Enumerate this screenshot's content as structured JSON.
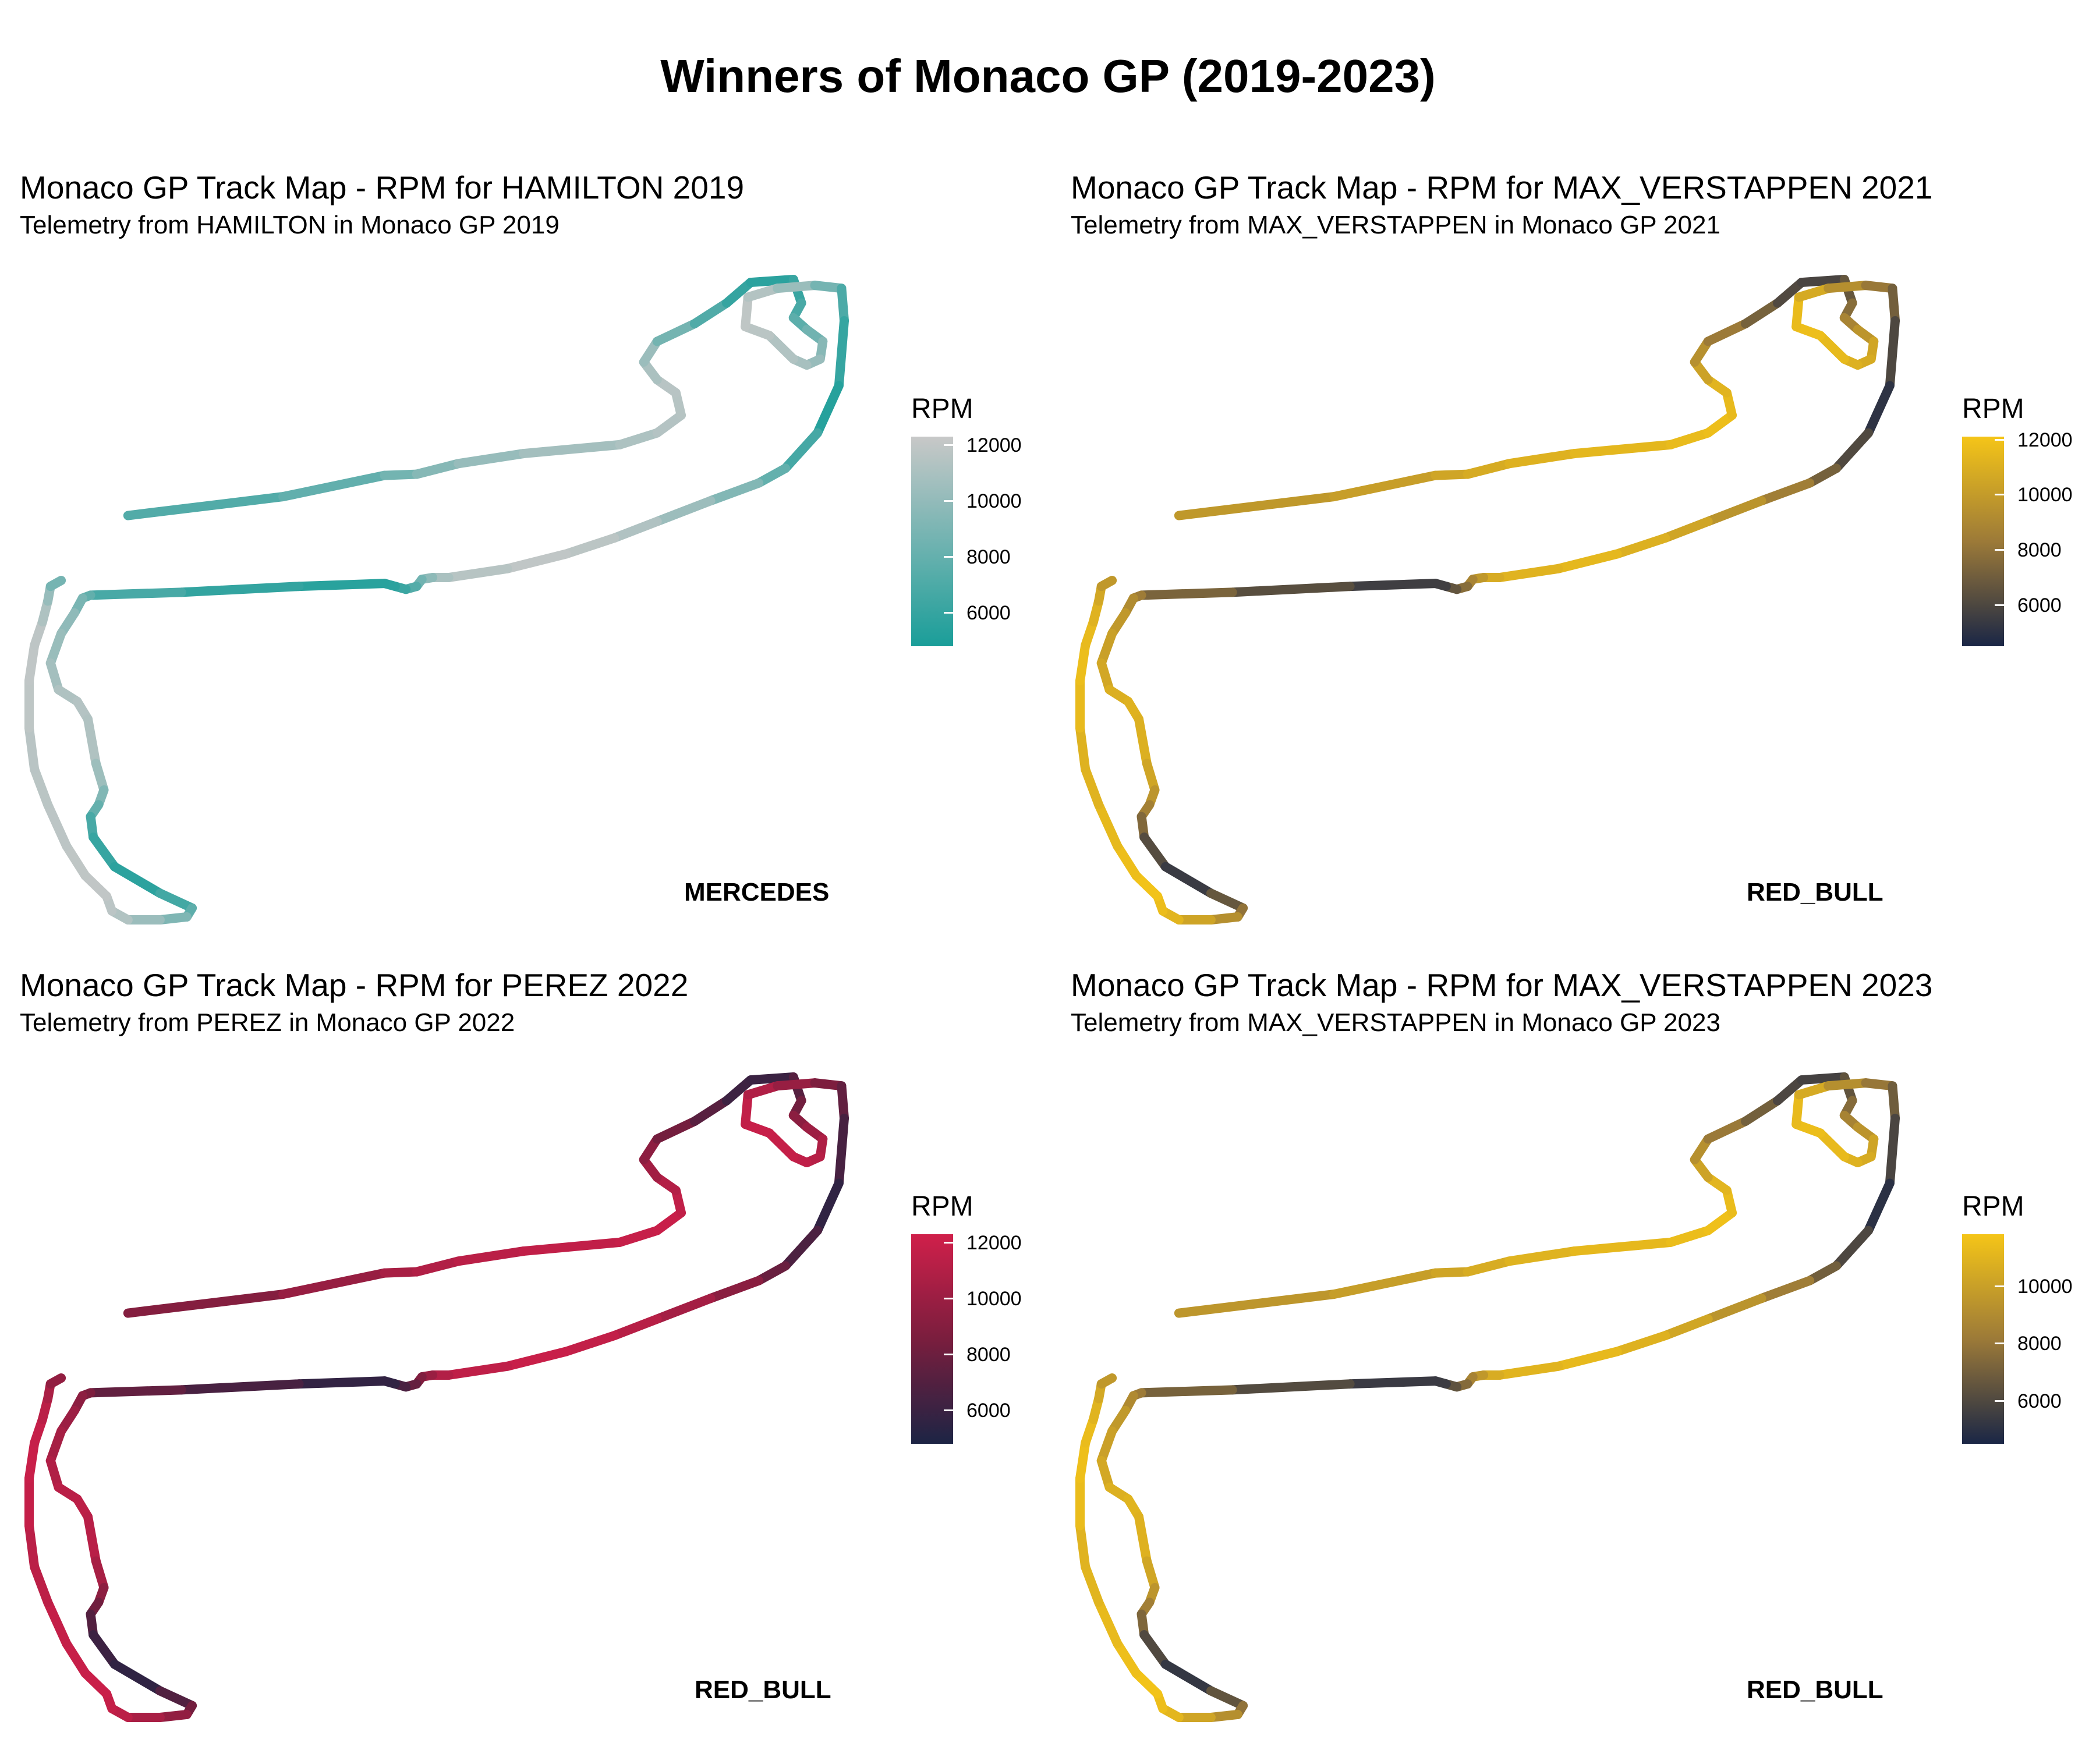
{
  "title": "Winners of Monaco GP (2019-2023)",
  "chart_data": [
    {
      "type": "line",
      "title": "Monaco GP Track Map - RPM for HAMILTON 2019",
      "subtitle": "Telemetry from HAMILTON in Monaco GP 2019",
      "team": "MERCEDES",
      "legend": {
        "title": "RPM",
        "ticks": [
          12000,
          10000,
          8000,
          6000
        ],
        "range": [
          4800,
          12300
        ],
        "low_color": "#1a9e99",
        "high_color": "#c8c8c8",
        "mid_color": null
      },
      "rpm_profile": [
        7200,
        8500,
        10000,
        11000,
        11500,
        11600,
        10500,
        7500,
        5300,
        6300,
        7800,
        9500,
        10800,
        11600,
        12000,
        10000,
        6800,
        5200,
        7600,
        10000,
        11600,
        12000,
        11000,
        8800,
        6500,
        5200,
        6000,
        8000,
        9800,
        10600,
        11500,
        11200,
        9000,
        6800,
        5400,
        7200,
        9800,
        11600,
        12000,
        11800,
        11600,
        12000,
        11800,
        10000,
        7200
      ]
    },
    {
      "type": "line",
      "title": "Monaco GP Track Map - RPM for MAX_VERSTAPPEN 2021",
      "subtitle": "Telemetry from MAX_VERSTAPPEN in Monaco GP 2021",
      "team": "RED_BULL",
      "legend": {
        "title": "RPM",
        "ticks": [
          12000,
          10000,
          8000,
          6000
        ],
        "range": [
          4500,
          12100
        ],
        "low_color": "#1a2646",
        "high_color": "#f5c518",
        "mid_color": "#9c7a38"
      },
      "rpm_profile": [
        9800,
        10400,
        11000,
        11500,
        11800,
        11200,
        9500,
        7500,
        5500,
        7000,
        9000,
        10500,
        11000,
        11800,
        11500,
        9000,
        7000,
        5000,
        6800,
        9200,
        10800,
        11500,
        10800,
        9000,
        7000,
        5200,
        6500,
        8500,
        9800,
        10500,
        11200,
        11000,
        9500,
        7500,
        5200,
        7500,
        10000,
        11500,
        12000,
        11500,
        11000,
        11800,
        11500,
        10500,
        9000
      ]
    },
    {
      "type": "line",
      "title": "Monaco GP Track Map - RPM for PEREZ 2022",
      "subtitle": "Telemetry from PEREZ in Monaco GP 2022",
      "team": "RED_BULL",
      "legend": {
        "title": "RPM",
        "ticks": [
          12000,
          10000,
          8000,
          6000
        ],
        "range": [
          4800,
          12300
        ],
        "low_color": "#1c2444",
        "high_color": "#d01f4a",
        "mid_color": "#7a1e3e"
      },
      "rpm_profile": [
        9000,
        10500,
        11200,
        11800,
        12000,
        11000,
        9500,
        7500,
        5500,
        7500,
        9500,
        10800,
        11500,
        12000,
        11500,
        9500,
        7500,
        5500,
        7500,
        10000,
        11500,
        12000,
        11000,
        9000,
        7000,
        5200,
        6800,
        8800,
        10000,
        10800,
        11500,
        11200,
        9200,
        7000,
        5300,
        7800,
        10200,
        11600,
        12000,
        11800,
        11200,
        12000,
        11800,
        10500,
        8500
      ]
    },
    {
      "type": "line",
      "title": "Monaco GP Track Map - RPM for MAX_VERSTAPPEN 2023",
      "subtitle": "Telemetry from MAX_VERSTAPPEN in Monaco GP 2023",
      "team": "RED_BULL",
      "legend": {
        "title": "RPM",
        "ticks": [
          10000,
          8000,
          6000
        ],
        "range": [
          4500,
          11800
        ],
        "low_color": "#1a2646",
        "high_color": "#f5c518",
        "mid_color": "#9c7a38"
      },
      "rpm_profile": [
        9500,
        10200,
        10800,
        11300,
        11600,
        11000,
        9300,
        7300,
        5300,
        6800,
        8800,
        10200,
        10800,
        11500,
        11200,
        8800,
        6800,
        4900,
        6600,
        9000,
        10600,
        11300,
        10600,
        8800,
        6800,
        5000,
        6300,
        8300,
        9600,
        10300,
        11000,
        10800,
        9300,
        7300,
        5000,
        7300,
        9800,
        11300,
        11700,
        11300,
        10800,
        11600,
        11300,
        10300,
        8800
      ]
    }
  ]
}
